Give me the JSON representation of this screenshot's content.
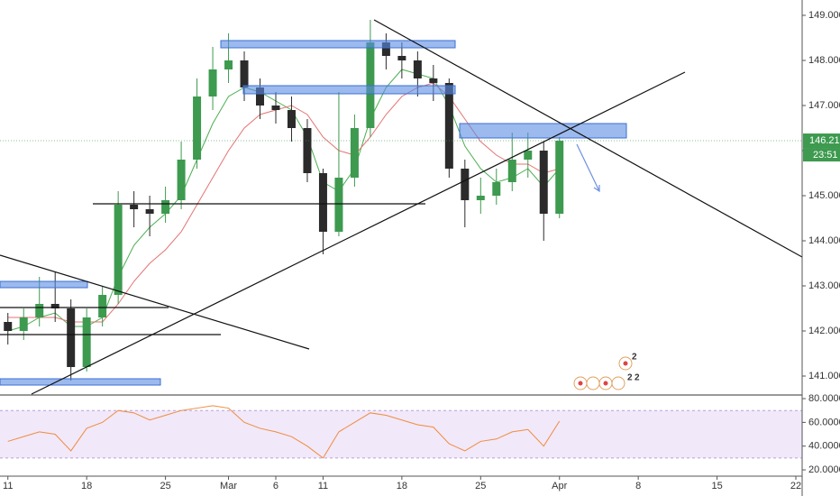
{
  "chart_data": [
    {
      "type": "candlestick",
      "x": [
        0,
        1,
        2,
        3,
        4,
        5,
        6,
        7,
        8,
        9,
        10,
        11,
        12,
        13,
        14,
        15,
        16,
        17,
        18,
        19,
        20,
        21,
        22,
        23,
        24,
        25,
        26,
        27,
        28,
        29,
        30,
        31,
        32,
        33,
        34,
        35
      ],
      "open": [
        142.2,
        142.0,
        142.3,
        142.6,
        142.5,
        141.2,
        142.3,
        142.8,
        144.8,
        144.7,
        144.6,
        144.9,
        145.8,
        147.2,
        147.8,
        148.0,
        147.4,
        147.0,
        146.9,
        146.5,
        145.5,
        144.2,
        145.4,
        146.5,
        148.4,
        148.1,
        148.0,
        147.6,
        147.5,
        145.6,
        144.9,
        145.0,
        145.3,
        145.8,
        146.0,
        144.6
      ],
      "high": [
        142.4,
        142.5,
        143.2,
        143.3,
        142.7,
        142.5,
        143.0,
        145.1,
        145.1,
        145.0,
        145.2,
        146.2,
        147.6,
        148.3,
        148.6,
        148.2,
        147.6,
        147.3,
        147.2,
        146.7,
        145.6,
        147.3,
        146.8,
        148.9,
        148.6,
        148.4,
        148.2,
        147.9,
        147.6,
        145.8,
        145.4,
        145.6,
        146.4,
        146.4,
        146.2,
        146.3
      ],
      "low": [
        141.7,
        141.8,
        142.1,
        142.2,
        140.9,
        141.1,
        142.1,
        142.6,
        144.3,
        144.1,
        144.4,
        144.7,
        145.6,
        146.9,
        147.5,
        147.1,
        146.7,
        146.6,
        146.2,
        145.3,
        143.7,
        144.1,
        145.2,
        146.3,
        147.8,
        147.6,
        147.2,
        147.1,
        145.4,
        144.3,
        144.6,
        144.8,
        145.1,
        145.4,
        144.0,
        144.5
      ],
      "close": [
        142.0,
        142.3,
        142.6,
        142.5,
        141.2,
        142.3,
        142.8,
        144.8,
        144.7,
        144.6,
        144.9,
        145.8,
        147.2,
        147.8,
        148.0,
        147.4,
        147.0,
        146.9,
        146.5,
        145.5,
        144.2,
        145.4,
        146.5,
        148.4,
        148.1,
        148.0,
        147.6,
        147.5,
        145.6,
        144.9,
        145.0,
        145.3,
        145.8,
        146.0,
        144.6,
        146.219
      ],
      "up_color": "#3d9a4f",
      "down_color": "#2b2b2b",
      "lines": [
        {
          "color": "#4caf50",
          "values": [
            142.0,
            142.1,
            142.3,
            142.4,
            142.1,
            142.1,
            142.3,
            143.2,
            143.9,
            144.3,
            144.6,
            145.0,
            145.8,
            146.6,
            147.2,
            147.4,
            147.3,
            147.1,
            146.9,
            146.3,
            145.3,
            145.1,
            145.6,
            146.7,
            147.4,
            147.8,
            147.7,
            147.6,
            147.0,
            146.1,
            145.6,
            145.3,
            145.4,
            145.6,
            145.2,
            145.6
          ]
        },
        {
          "color": "#e57373",
          "values": [
            142.3,
            142.3,
            142.3,
            142.3,
            142.2,
            142.2,
            142.2,
            142.6,
            143.1,
            143.5,
            143.8,
            144.2,
            144.8,
            145.4,
            146.0,
            146.5,
            146.8,
            146.9,
            147.0,
            146.8,
            146.3,
            146.0,
            145.9,
            146.3,
            146.8,
            147.2,
            147.4,
            147.5,
            147.2,
            146.7,
            146.2,
            145.9,
            145.7,
            145.7,
            145.5,
            145.6
          ]
        }
      ],
      "xlim": [
        -0.5,
        50.4
      ],
      "ylim": [
        140.6,
        149.34
      ],
      "yticks": [
        {
          "value": 141,
          "label": "141.000"
        },
        {
          "value": 142,
          "label": "142.000"
        },
        {
          "value": 143,
          "label": "143.000"
        },
        {
          "value": 144,
          "label": "144.000"
        },
        {
          "value": 145,
          "label": "145.000"
        },
        {
          "value": 146,
          "label": "146.000"
        },
        {
          "value": 147,
          "label": "147.000"
        },
        {
          "value": 148,
          "label": "148.000"
        },
        {
          "value": 149,
          "label": "149.000"
        }
      ],
      "last_price": {
        "value": 146.219,
        "label": "146.219"
      },
      "countdown": "23:51",
      "event_labels": [
        "2",
        "2",
        "2"
      ]
    },
    {
      "type": "line",
      "x": [
        0,
        1,
        2,
        3,
        4,
        5,
        6,
        7,
        8,
        9,
        10,
        11,
        12,
        13,
        14,
        15,
        16,
        17,
        18,
        19,
        20,
        21,
        22,
        23,
        24,
        25,
        26,
        27,
        28,
        29,
        30,
        31,
        32,
        33,
        34,
        35
      ],
      "values": [
        44,
        48,
        52,
        50,
        36,
        55,
        60,
        70,
        68,
        62,
        66,
        70,
        72,
        74,
        72,
        60,
        55,
        52,
        48,
        40,
        30,
        52,
        60,
        68,
        66,
        62,
        58,
        56,
        42,
        36,
        44,
        46,
        52,
        54,
        40,
        61
      ],
      "color": "#f08c3c",
      "band": [
        30,
        70
      ],
      "xlim": [
        -0.5,
        50.4
      ],
      "ylim": [
        14.7,
        82.3
      ],
      "yticks": [
        {
          "value": 20,
          "label": "20.0000"
        },
        {
          "value": 40,
          "label": "40.0000"
        },
        {
          "value": 60,
          "label": "60.0000"
        },
        {
          "value": 80,
          "label": "80.0000"
        }
      ],
      "xticks": [
        {
          "value": 0,
          "label": "11"
        },
        {
          "value": 5,
          "label": "18"
        },
        {
          "value": 10,
          "label": "25"
        },
        {
          "value": 14,
          "label": "Mar"
        },
        {
          "value": 17,
          "label": "6"
        },
        {
          "value": 20,
          "label": "11"
        },
        {
          "value": 25,
          "label": "18"
        },
        {
          "value": 30,
          "label": "25"
        },
        {
          "value": 35,
          "label": "Apr"
        },
        {
          "value": 40,
          "label": "8"
        },
        {
          "value": 45,
          "label": "15"
        },
        {
          "value": 50,
          "label": "22"
        }
      ]
    }
  ]
}
